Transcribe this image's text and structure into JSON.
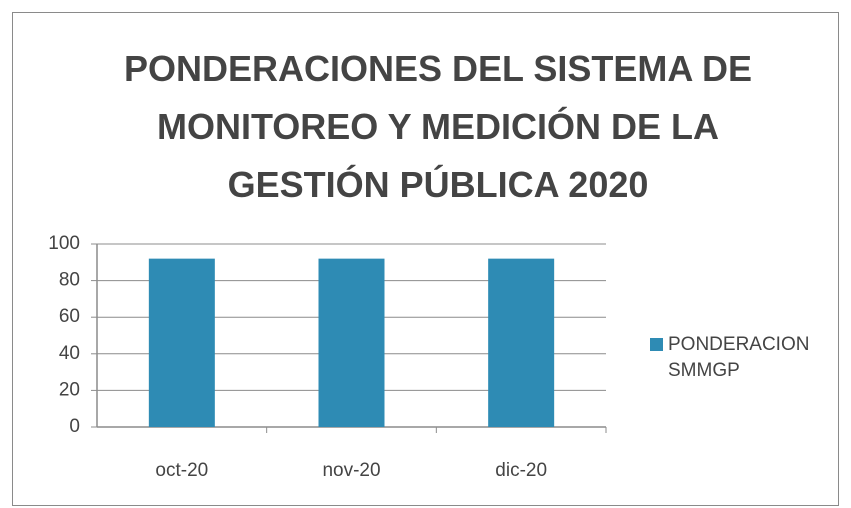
{
  "chart_data": {
    "type": "bar",
    "title": "PONDERACIONES DEL SISTEMA DE MONITOREO Y MEDICIÓN DE LA GESTIÓN PÚBLICA 2020",
    "categories": [
      "oct-20",
      "nov-20",
      "dic-20"
    ],
    "series": [
      {
        "name": "PONDERACION SMMGP",
        "color": "#2e8bb4",
        "values": [
          92,
          92,
          92
        ]
      }
    ],
    "ylim": [
      0,
      100
    ],
    "yticks": [
      0,
      20,
      40,
      60,
      80,
      100
    ],
    "grid": true,
    "legend": "right"
  }
}
